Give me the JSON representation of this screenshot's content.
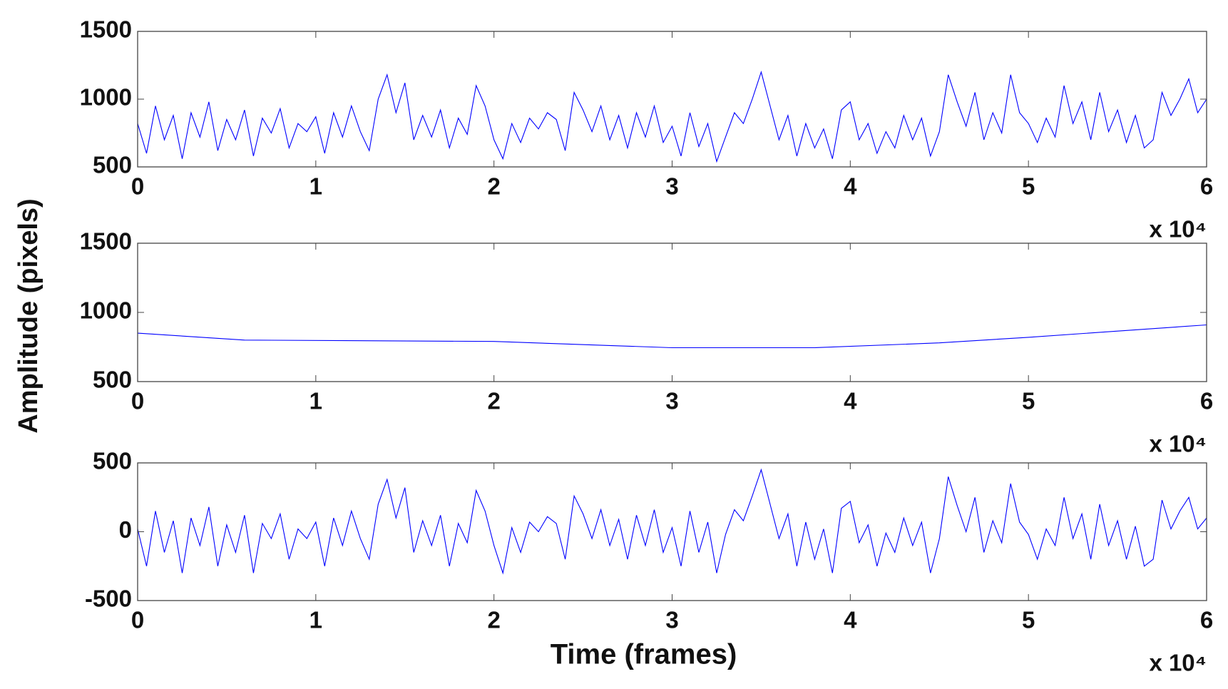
{
  "chart_data": [
    {
      "type": "line",
      "color": "#0000ff",
      "x": [
        0,
        0.05,
        0.1,
        0.15,
        0.2,
        0.25,
        0.3,
        0.35,
        0.4,
        0.45,
        0.5,
        0.55,
        0.6,
        0.65,
        0.7,
        0.75,
        0.8,
        0.85,
        0.9,
        0.95,
        1,
        1.05,
        1.1,
        1.15,
        1.2,
        1.25,
        1.3,
        1.35,
        1.4,
        1.45,
        1.5,
        1.55,
        1.6,
        1.65,
        1.7,
        1.75,
        1.8,
        1.85,
        1.9,
        1.95,
        2,
        2.05,
        2.1,
        2.15,
        2.2,
        2.25,
        2.3,
        2.35,
        2.4,
        2.45,
        2.5,
        2.55,
        2.6,
        2.65,
        2.7,
        2.75,
        2.8,
        2.85,
        2.9,
        2.95,
        3,
        3.05,
        3.1,
        3.15,
        3.2,
        3.25,
        3.3,
        3.35,
        3.4,
        3.45,
        3.5,
        3.55,
        3.6,
        3.65,
        3.7,
        3.75,
        3.8,
        3.85,
        3.9,
        3.95,
        4,
        4.05,
        4.1,
        4.15,
        4.2,
        4.25,
        4.3,
        4.35,
        4.4,
        4.45,
        4.5,
        4.55,
        4.6,
        4.65,
        4.7,
        4.75,
        4.8,
        4.85,
        4.9,
        4.95,
        5,
        5.05,
        5.1,
        5.15,
        5.2,
        5.25,
        5.3,
        5.35,
        5.4,
        5.45,
        5.5,
        5.55,
        5.6,
        5.65,
        5.7,
        5.75,
        5.8,
        5.85,
        5.9,
        5.95,
        6
      ],
      "values": [
        820,
        600,
        950,
        700,
        880,
        560,
        900,
        720,
        980,
        620,
        850,
        700,
        920,
        580,
        860,
        750,
        930,
        640,
        820,
        760,
        870,
        600,
        900,
        720,
        950,
        760,
        620,
        1000,
        1180,
        900,
        1120,
        700,
        880,
        720,
        920,
        640,
        860,
        740,
        1100,
        950,
        700,
        560,
        820,
        680,
        860,
        780,
        900,
        850,
        620,
        1050,
        920,
        760,
        950,
        700,
        880,
        640,
        900,
        720,
        950,
        680,
        800,
        580,
        900,
        650,
        820,
        540,
        720,
        900,
        820,
        1000,
        1200,
        950,
        700,
        880,
        580,
        820,
        640,
        780,
        560,
        920,
        980,
        700,
        820,
        600,
        760,
        640,
        880,
        700,
        860,
        580,
        760,
        1180,
        980,
        800,
        1050,
        700,
        900,
        750,
        1180,
        900,
        820,
        680,
        860,
        720,
        1100,
        820,
        980,
        700,
        1050,
        760,
        920,
        680,
        880,
        640,
        700,
        1050,
        880,
        1000,
        1150,
        900,
        1000
      ],
      "xlim": [
        0,
        6
      ],
      "xticks": [
        0,
        1,
        2,
        3,
        4,
        5,
        6
      ],
      "ylim": [
        500,
        1500
      ],
      "yticks": [
        500,
        1000,
        1500
      ],
      "x_scale_label": "x 10⁴"
    },
    {
      "type": "line",
      "color": "#0000ff",
      "x": [
        0,
        0.6,
        2,
        3,
        3.8,
        4.5,
        5,
        6
      ],
      "values": [
        850,
        800,
        790,
        745,
        745,
        780,
        820,
        910
      ],
      "xlim": [
        0,
        6
      ],
      "xticks": [
        0,
        1,
        2,
        3,
        4,
        5,
        6
      ],
      "ylim": [
        500,
        1500
      ],
      "yticks": [
        500,
        1000,
        1500
      ],
      "x_scale_label": "x 10⁴",
      "ylabel": "Amplitude (pixels)"
    },
    {
      "type": "line",
      "color": "#0000ff",
      "x": [
        0,
        0.05,
        0.1,
        0.15,
        0.2,
        0.25,
        0.3,
        0.35,
        0.4,
        0.45,
        0.5,
        0.55,
        0.6,
        0.65,
        0.7,
        0.75,
        0.8,
        0.85,
        0.9,
        0.95,
        1,
        1.05,
        1.1,
        1.15,
        1.2,
        1.25,
        1.3,
        1.35,
        1.4,
        1.45,
        1.5,
        1.55,
        1.6,
        1.65,
        1.7,
        1.75,
        1.8,
        1.85,
        1.9,
        1.95,
        2,
        2.05,
        2.1,
        2.15,
        2.2,
        2.25,
        2.3,
        2.35,
        2.4,
        2.45,
        2.5,
        2.55,
        2.6,
        2.65,
        2.7,
        2.75,
        2.8,
        2.85,
        2.9,
        2.95,
        3,
        3.05,
        3.1,
        3.15,
        3.2,
        3.25,
        3.3,
        3.35,
        3.4,
        3.45,
        3.5,
        3.55,
        3.6,
        3.65,
        3.7,
        3.75,
        3.8,
        3.85,
        3.9,
        3.95,
        4,
        4.05,
        4.1,
        4.15,
        4.2,
        4.25,
        4.3,
        4.35,
        4.4,
        4.45,
        4.5,
        4.55,
        4.6,
        4.65,
        4.7,
        4.75,
        4.8,
        4.85,
        4.9,
        4.95,
        5,
        5.05,
        5.1,
        5.15,
        5.2,
        5.25,
        5.3,
        5.35,
        5.4,
        5.45,
        5.5,
        5.55,
        5.6,
        5.65,
        5.7,
        5.75,
        5.8,
        5.85,
        5.9,
        5.95,
        6
      ],
      "values": [
        20,
        -250,
        150,
        -150,
        80,
        -300,
        100,
        -100,
        180,
        -250,
        50,
        -150,
        120,
        -300,
        60,
        -50,
        130,
        -200,
        20,
        -50,
        70,
        -250,
        100,
        -100,
        150,
        -50,
        -200,
        200,
        380,
        100,
        320,
        -150,
        80,
        -100,
        120,
        -250,
        60,
        -80,
        300,
        150,
        -100,
        -300,
        30,
        -150,
        70,
        0,
        110,
        60,
        -200,
        260,
        130,
        -50,
        160,
        -100,
        90,
        -200,
        120,
        -100,
        160,
        -150,
        30,
        -250,
        150,
        -150,
        70,
        -300,
        -20,
        160,
        80,
        260,
        450,
        200,
        -50,
        130,
        -250,
        70,
        -200,
        20,
        -300,
        170,
        220,
        -80,
        50,
        -250,
        -10,
        -150,
        100,
        -100,
        70,
        -300,
        -50,
        400,
        190,
        0,
        250,
        -150,
        80,
        -80,
        350,
        70,
        -20,
        -200,
        20,
        -100,
        250,
        -50,
        130,
        -200,
        200,
        -100,
        80,
        -200,
        40,
        -250,
        -200,
        230,
        20,
        150,
        250,
        20,
        100
      ],
      "xlim": [
        0,
        6
      ],
      "xticks": [
        0,
        1,
        2,
        3,
        4,
        5,
        6
      ],
      "ylim": [
        -500,
        500
      ],
      "yticks": [
        -500,
        0,
        500
      ],
      "x_scale_label": "x 10⁴",
      "xlabel": "Time (frames)"
    }
  ]
}
